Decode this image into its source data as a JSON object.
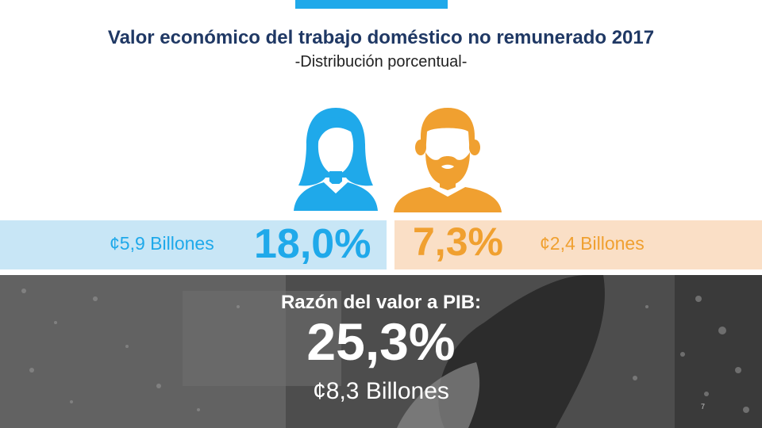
{
  "header": {
    "title": "Valor económico del trabajo doméstico no remunerado 2017",
    "subtitle": "-Distribución porcentual-"
  },
  "women": {
    "icon": "woman-icon",
    "amount": "¢5,9 Billones",
    "percent": "18,0%",
    "color": "#1fa9ea",
    "band_color": "#c8e6f6"
  },
  "men": {
    "icon": "man-icon",
    "amount": "¢2,4 Billones",
    "percent": "7,3%",
    "color": "#f0a030",
    "band_color": "#fadfc6"
  },
  "total": {
    "label": "Razón del valor a PIB:",
    "percent": "25,3%",
    "amount": "¢8,3 Billones"
  },
  "page_number": "7",
  "colors": {
    "title": "#1f3864",
    "accent": "#1fa9ea"
  }
}
